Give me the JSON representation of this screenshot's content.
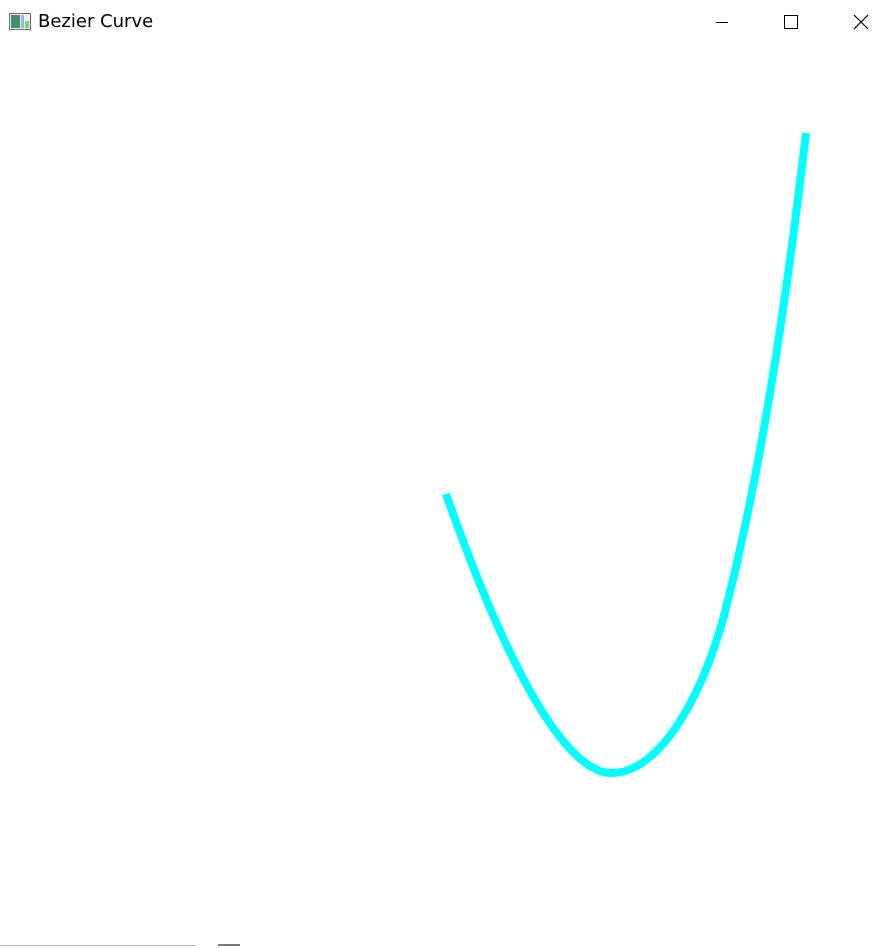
{
  "window": {
    "title": "Bezier Curve",
    "app_icon": "app-window-icon",
    "controls": {
      "minimize_icon": "minimize-icon",
      "maximize_icon": "maximize-icon",
      "close_icon": "close-icon"
    }
  },
  "canvas": {
    "background": "#ffffff",
    "curve_color": "#00ffff"
  }
}
